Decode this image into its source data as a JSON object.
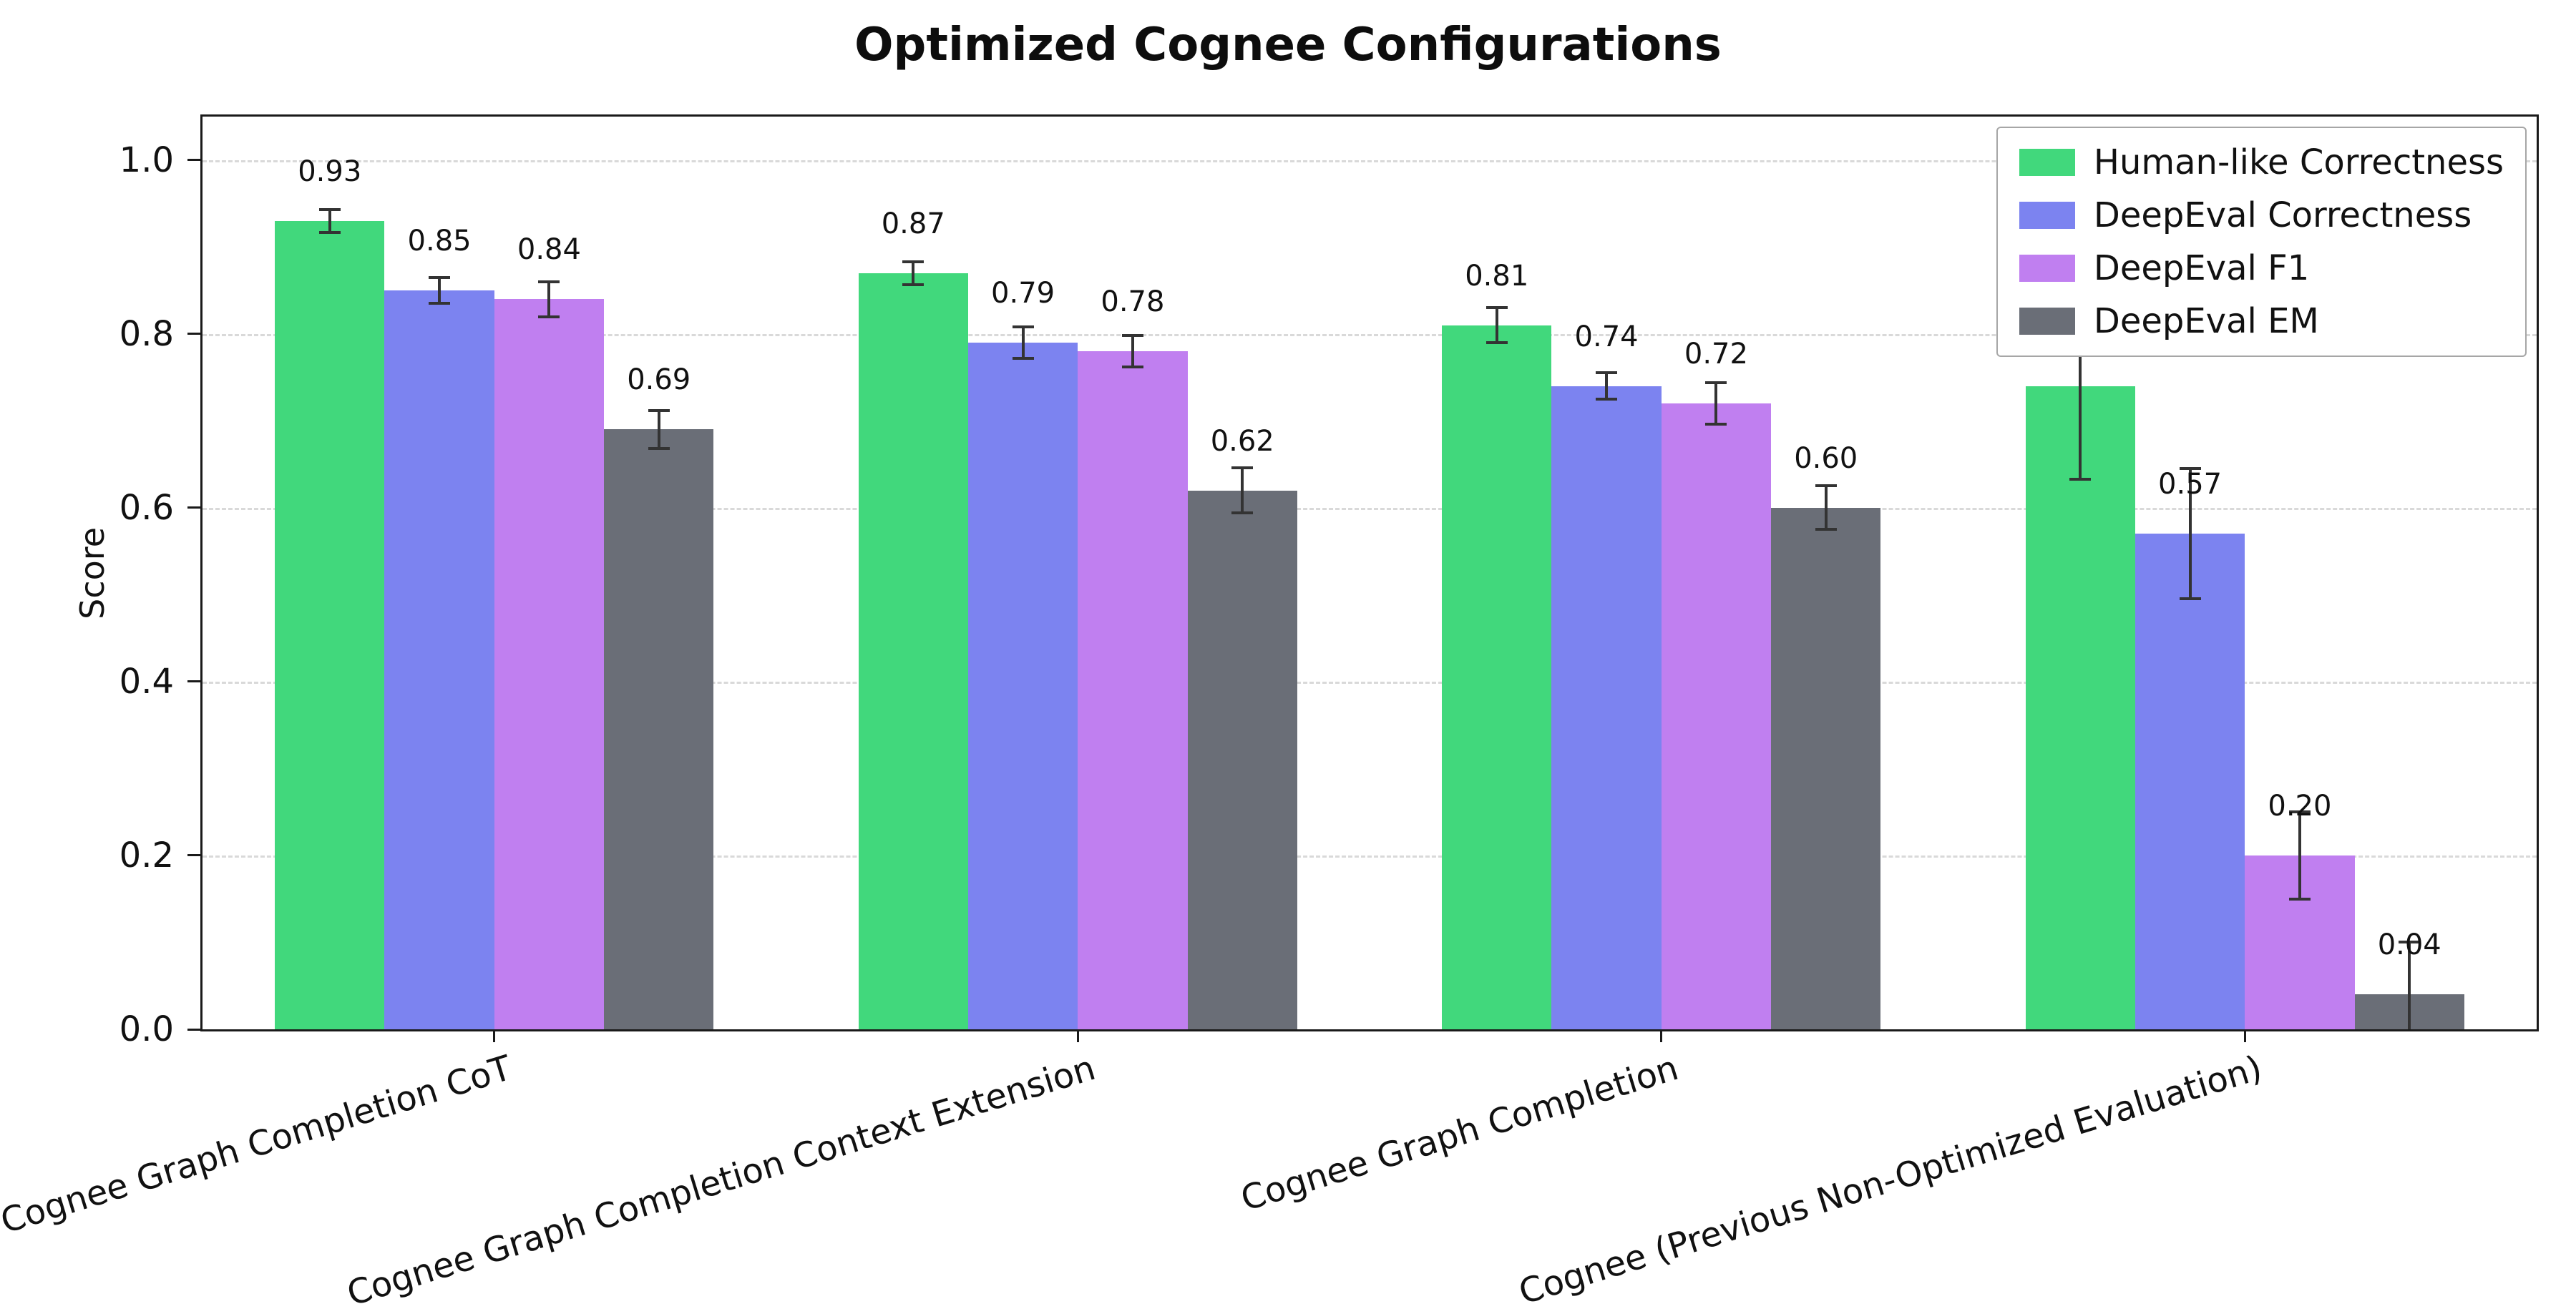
{
  "background": "#ffffff",
  "chart_data": {
    "type": "bar",
    "title": "Optimized Cognee Configurations",
    "xlabel": "",
    "ylabel": "Score",
    "ylim": [
      0,
      1.05
    ],
    "yticks": [
      0.0,
      0.2,
      0.4,
      0.6,
      0.8,
      1.0
    ],
    "ytick_labels": [
      "0.0",
      "0.2",
      "0.4",
      "0.6",
      "0.8",
      "1.0"
    ],
    "grid": "horizontal-dashed",
    "legend_position": "upper-right",
    "categories": [
      "Cognee Graph Completion CoT",
      "Cognee Graph Completion Context Extension",
      "Cognee Graph Completion",
      "Cognee (Previous Non-Optimized Evaluation)"
    ],
    "series": [
      {
        "name": "Human-like Correctness",
        "color": "#41d87c",
        "values": [
          0.93,
          0.87,
          0.81,
          0.74
        ],
        "errors": [
          0.013,
          0.013,
          0.02,
          0.107
        ],
        "labels": [
          "0.93",
          "0.87",
          "0.81",
          "0.74"
        ]
      },
      {
        "name": "DeepEval Correctness",
        "color": "#7c83f0",
        "values": [
          0.85,
          0.79,
          0.74,
          0.57
        ],
        "errors": [
          0.015,
          0.018,
          0.015,
          0.075
        ],
        "labels": [
          "0.85",
          "0.79",
          "0.74",
          "0.57"
        ]
      },
      {
        "name": "DeepEval F1",
        "color": "#c07ff0",
        "values": [
          0.84,
          0.78,
          0.72,
          0.2
        ],
        "errors": [
          0.02,
          0.018,
          0.024,
          0.05
        ],
        "labels": [
          "0.84",
          "0.78",
          "0.72",
          "0.20"
        ]
      },
      {
        "name": "DeepEval EM",
        "color": "#6a6e77",
        "values": [
          0.69,
          0.62,
          0.6,
          0.04
        ],
        "errors": [
          0.022,
          0.026,
          0.025,
          0.06
        ],
        "labels": [
          "0.69",
          "0.62",
          "0.60",
          "0.04"
        ]
      }
    ]
  }
}
